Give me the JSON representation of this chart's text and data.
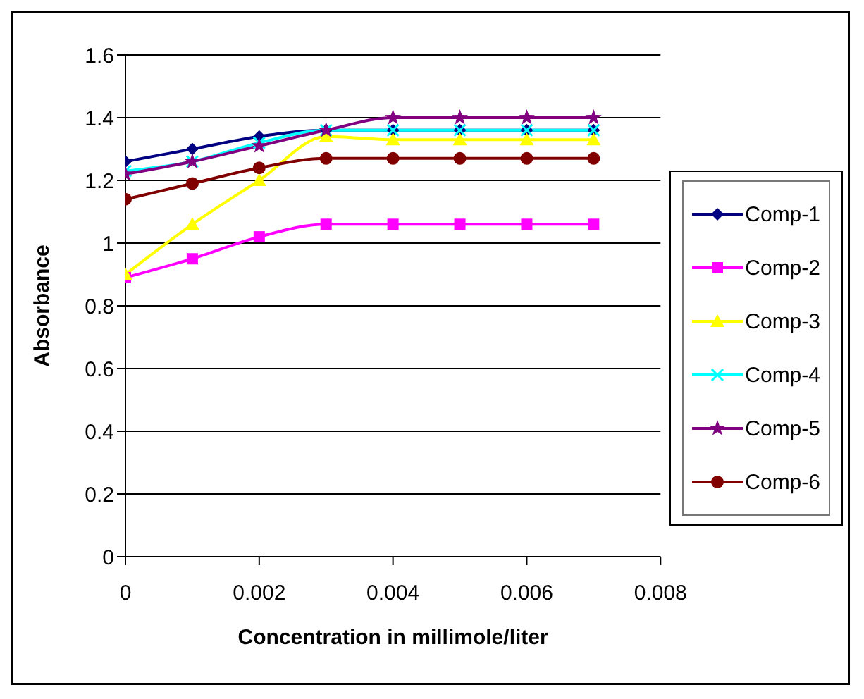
{
  "chart_data": {
    "type": "line",
    "xlabel": "Concentration in millimole/liter",
    "ylabel": "Absorbance",
    "x": [
      0,
      0.001,
      0.002,
      0.003,
      0.004,
      0.005,
      0.006,
      0.007
    ],
    "xlim": [
      0,
      0.008
    ],
    "xticks": [
      0,
      0.002,
      0.004,
      0.006,
      0.008
    ],
    "ylim": [
      0,
      1.6
    ],
    "yticks": [
      0,
      0.2,
      0.4,
      0.6,
      0.8,
      1,
      1.2,
      1.4,
      1.6
    ],
    "grid": "y",
    "legend": "right",
    "line_style": "solid",
    "series": [
      {
        "name": "Comp-1",
        "color": "#000080",
        "marker": "diamond",
        "values": [
          1.26,
          1.3,
          1.34,
          1.36,
          1.36,
          1.36,
          1.36,
          1.36
        ]
      },
      {
        "name": "Comp-2",
        "color": "#ff00ff",
        "marker": "square",
        "values": [
          0.89,
          0.95,
          1.02,
          1.06,
          1.06,
          1.06,
          1.06,
          1.06
        ]
      },
      {
        "name": "Comp-3",
        "color": "#ffff00",
        "marker": "triangle",
        "values": [
          0.9,
          1.06,
          1.2,
          1.34,
          1.33,
          1.33,
          1.33,
          1.33
        ]
      },
      {
        "name": "Comp-4",
        "color": "#00ffff",
        "marker": "cross",
        "values": [
          1.23,
          1.26,
          1.32,
          1.36,
          1.36,
          1.36,
          1.36,
          1.36
        ]
      },
      {
        "name": "Comp-5",
        "color": "#800080",
        "marker": "star",
        "values": [
          1.22,
          1.26,
          1.31,
          1.36,
          1.4,
          1.4,
          1.4,
          1.4
        ]
      },
      {
        "name": "Comp-6",
        "color": "#800000",
        "marker": "circle",
        "values": [
          1.14,
          1.19,
          1.24,
          1.27,
          1.27,
          1.27,
          1.27,
          1.27
        ]
      }
    ]
  }
}
